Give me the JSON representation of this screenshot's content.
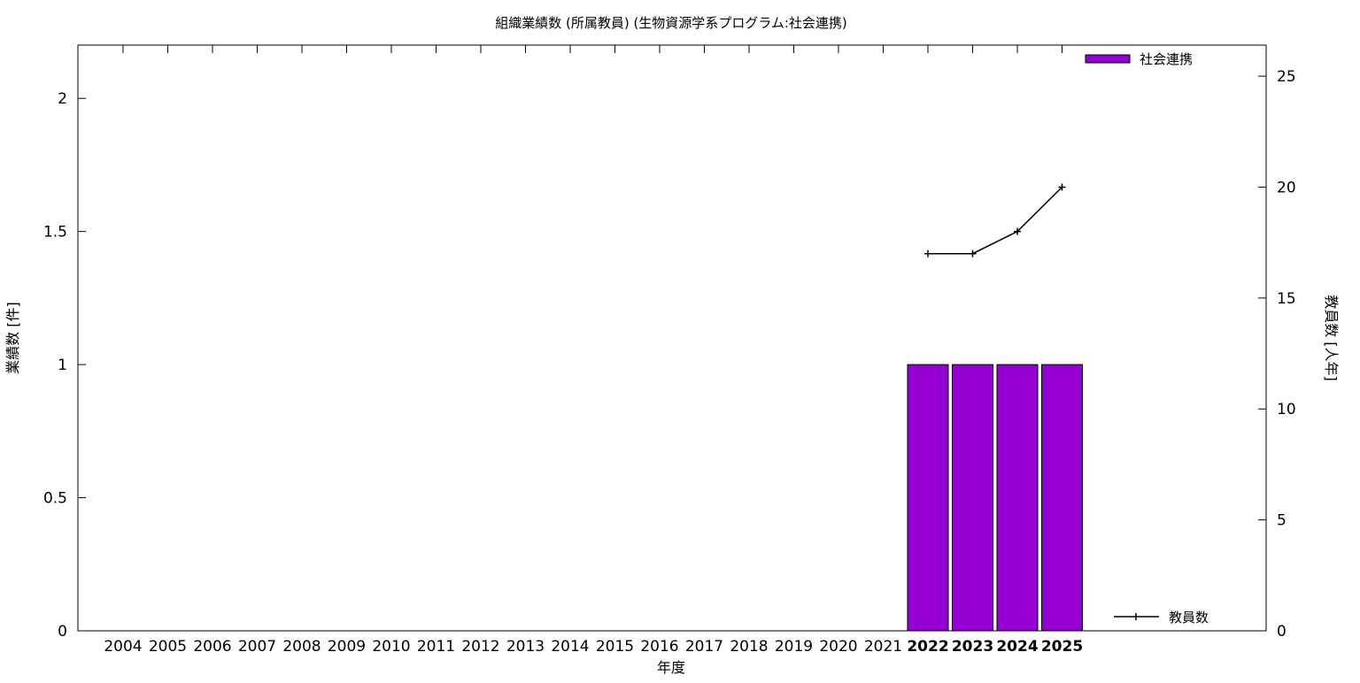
{
  "chart_data": {
    "type": "bar",
    "title": "組織業績数 (所属教員) (生物資源学系プログラム:社会連携)",
    "xlabel": "年度",
    "ylabel": "業績数 [件]",
    "y2label": "教員数 [人年]",
    "categories": [
      "2004",
      "2005",
      "2006",
      "2007",
      "2008",
      "2009",
      "2010",
      "2011",
      "2012",
      "2013",
      "2014",
      "2015",
      "2016",
      "2017",
      "2018",
      "2019",
      "2020",
      "2021",
      "2022",
      "2023",
      "2024",
      "2025"
    ],
    "bold_categories": [
      "2022",
      "2023",
      "2024",
      "2025"
    ],
    "ylim": [
      0,
      2.2
    ],
    "yticks": [
      "0",
      "0.5",
      "1",
      "1.5",
      "2"
    ],
    "y2lim": [
      0,
      26.4
    ],
    "y2ticks": [
      "0",
      "5",
      "10",
      "15",
      "20",
      "25"
    ],
    "grid": false,
    "series": [
      {
        "name": "社会連携",
        "kind": "bar",
        "axis": "left",
        "color": "#9400d3",
        "values": [
          0,
          0,
          0,
          0,
          0,
          0,
          0,
          0,
          0,
          0,
          0,
          0,
          0,
          0,
          0,
          0,
          0,
          0,
          1,
          1,
          1,
          1
        ]
      },
      {
        "name": "教員数",
        "kind": "line",
        "axis": "right",
        "color": "#000000",
        "points": [
          {
            "x": "2022",
            "y": 17
          },
          {
            "x": "2023",
            "y": 17
          },
          {
            "x": "2024",
            "y": 18
          },
          {
            "x": "2025",
            "y": 20
          }
        ]
      }
    ],
    "legend": [
      {
        "label": "社会連携",
        "placement": "top-right"
      },
      {
        "label": "教員数",
        "placement": "bottom-right"
      }
    ]
  }
}
